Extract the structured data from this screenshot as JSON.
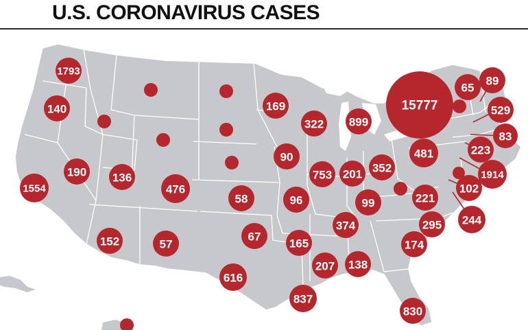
{
  "title": "U.S. CORONAVIRUS CASES",
  "colors": {
    "bubble": "#b5272d",
    "land": "#c6c8cc",
    "border": "#ffffff",
    "water": "#ffffff"
  },
  "bubbles": [
    {
      "region": "washington",
      "label": "1793"
    },
    {
      "region": "oregon",
      "label": "140"
    },
    {
      "region": "california",
      "label": "1554"
    },
    {
      "region": "nevada",
      "label": "190"
    },
    {
      "region": "utah",
      "label": "136"
    },
    {
      "region": "colorado",
      "label": "476"
    },
    {
      "region": "arizona",
      "label": "152"
    },
    {
      "region": "new-mexico",
      "label": "57"
    },
    {
      "region": "idaho",
      "label": ""
    },
    {
      "region": "montana",
      "label": ""
    },
    {
      "region": "wyoming",
      "label": ""
    },
    {
      "region": "north-dakota",
      "label": ""
    },
    {
      "region": "south-dakota",
      "label": ""
    },
    {
      "region": "nebraska",
      "label": ""
    },
    {
      "region": "kansas",
      "label": "58"
    },
    {
      "region": "oklahoma",
      "label": "67"
    },
    {
      "region": "texas",
      "label": "616"
    },
    {
      "region": "minnesota",
      "label": "169"
    },
    {
      "region": "iowa",
      "label": "90"
    },
    {
      "region": "missouri",
      "label": "96"
    },
    {
      "region": "arkansas",
      "label": "165"
    },
    {
      "region": "louisiana",
      "label": "837"
    },
    {
      "region": "wisconsin",
      "label": "322"
    },
    {
      "region": "illinois",
      "label": "753"
    },
    {
      "region": "michigan",
      "label": "899"
    },
    {
      "region": "indiana",
      "label": "201"
    },
    {
      "region": "ohio",
      "label": "352"
    },
    {
      "region": "kentucky",
      "label": "99"
    },
    {
      "region": "tennessee",
      "label": "374"
    },
    {
      "region": "mississippi",
      "label": "207"
    },
    {
      "region": "alabama",
      "label": "138"
    },
    {
      "region": "georgia",
      "label": "174"
    },
    {
      "region": "florida",
      "label": "830"
    },
    {
      "region": "south-carolina",
      "label": "295"
    },
    {
      "region": "north-carolina",
      "label": "221"
    },
    {
      "region": "west-virginia",
      "label": ""
    },
    {
      "region": "pennsylvania",
      "label": "481"
    },
    {
      "region": "new-york",
      "label": "15777"
    },
    {
      "region": "vermont",
      "label": ""
    },
    {
      "region": "new-hampshire",
      "label": "65"
    },
    {
      "region": "maine",
      "label": "89"
    },
    {
      "region": "massachusetts",
      "label": "529"
    },
    {
      "region": "rhode-island",
      "label": "83"
    },
    {
      "region": "connecticut",
      "label": "223"
    },
    {
      "region": "new-jersey",
      "label": "1914"
    },
    {
      "region": "delaware",
      "label": ""
    },
    {
      "region": "maryland",
      "label": "102"
    },
    {
      "region": "virginia",
      "label": "244"
    },
    {
      "region": "hawaii",
      "label": ""
    }
  ]
}
